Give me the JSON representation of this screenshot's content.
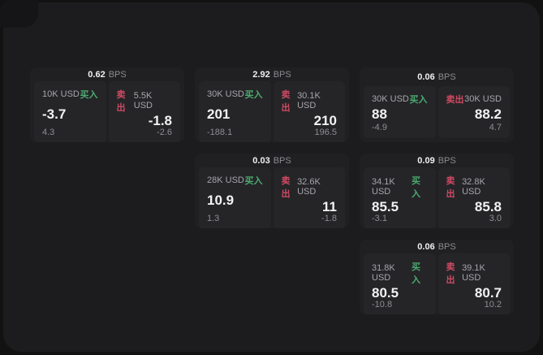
{
  "page": {
    "background": "#121212",
    "window_background": "#1c1c1e"
  },
  "colors": {
    "buy_green": "#4cab70",
    "sell_red": "#cf4a62",
    "card_background": "#202022",
    "panel_background": "#252528"
  },
  "labels": {
    "bps_unit": "BPS",
    "buy": "买入",
    "sell": "卖出"
  },
  "cards": [
    {
      "bps": "0.62",
      "col": 1,
      "row": 1,
      "buy": {
        "size": "10K USD",
        "price": "-3.7",
        "delta": "4.3"
      },
      "sell": {
        "size": "5.5K USD",
        "price": "-1.8",
        "delta": "-2.6"
      }
    },
    {
      "bps": "2.92",
      "col": 2,
      "row": 1,
      "buy": {
        "size": "30K USD",
        "price": "201",
        "delta": "-188.1"
      },
      "sell": {
        "size": "30.1K USD",
        "price": "210",
        "delta": "196.5"
      }
    },
    {
      "bps": "0.06",
      "col": 3,
      "row": 1,
      "buy": {
        "size": "30K USD",
        "price": "88",
        "delta": "-4.9"
      },
      "sell": {
        "size": "30K USD",
        "price": "88.2",
        "delta": "4.7"
      }
    },
    {
      "bps": "0.03",
      "col": 2,
      "row": 2,
      "buy": {
        "size": "28K USD",
        "price": "10.9",
        "delta": "1.3"
      },
      "sell": {
        "size": "32.6K USD",
        "price": "11",
        "delta": "-1.8"
      }
    },
    {
      "bps": "0.09",
      "col": 3,
      "row": 2,
      "buy": {
        "size": "34.1K USD",
        "price": "85.5",
        "delta": "-3.1"
      },
      "sell": {
        "size": "32.8K USD",
        "price": "85.8",
        "delta": "3.0"
      }
    },
    {
      "bps": "0.06",
      "col": 3,
      "row": 3,
      "buy": {
        "size": "31.8K USD",
        "price": "80.5",
        "delta": "-10.8"
      },
      "sell": {
        "size": "39.1K USD",
        "price": "80.7",
        "delta": "10.2"
      }
    }
  ]
}
